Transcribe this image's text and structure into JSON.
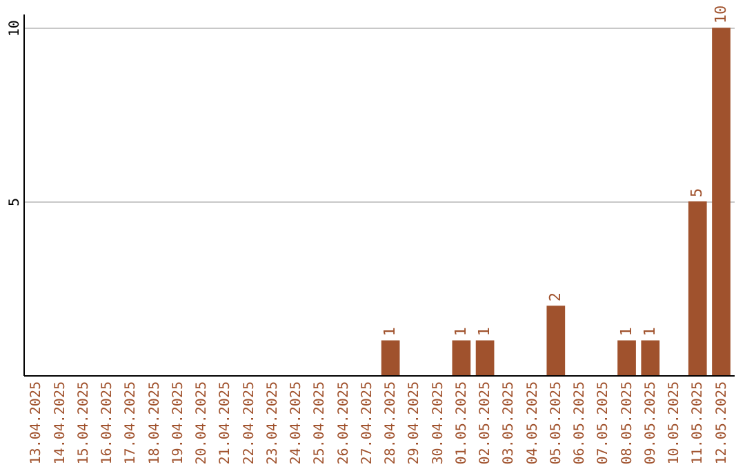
{
  "chart_data": {
    "type": "bar",
    "categories": [
      "13.04.2025",
      "14.04.2025",
      "15.04.2025",
      "16.04.2025",
      "17.04.2025",
      "18.04.2025",
      "19.04.2025",
      "20.04.2025",
      "21.04.2025",
      "22.04.2025",
      "23.04.2025",
      "24.04.2025",
      "25.04.2025",
      "26.04.2025",
      "27.04.2025",
      "28.04.2025",
      "29.04.2025",
      "30.04.2025",
      "01.05.2025",
      "02.05.2025",
      "03.05.2025",
      "04.05.2025",
      "05.05.2025",
      "06.05.2025",
      "07.05.2025",
      "08.05.2025",
      "09.05.2025",
      "10.05.2025",
      "11.05.2025",
      "12.05.2025"
    ],
    "values": [
      0,
      0,
      0,
      0,
      0,
      0,
      0,
      0,
      0,
      0,
      0,
      0,
      0,
      0,
      0,
      1,
      0,
      0,
      1,
      1,
      0,
      0,
      2,
      0,
      0,
      1,
      1,
      0,
      5,
      10
    ],
    "value_labels": [
      null,
      null,
      null,
      null,
      null,
      null,
      null,
      null,
      null,
      null,
      null,
      null,
      null,
      null,
      null,
      "1",
      null,
      null,
      "1",
      "1",
      null,
      null,
      "2",
      null,
      null,
      "1",
      "1",
      null,
      "5",
      "10"
    ],
    "color": "#a0522d",
    "ylim": [
      0,
      10.4
    ],
    "yticks": [
      5,
      10
    ],
    "grid": "y"
  }
}
